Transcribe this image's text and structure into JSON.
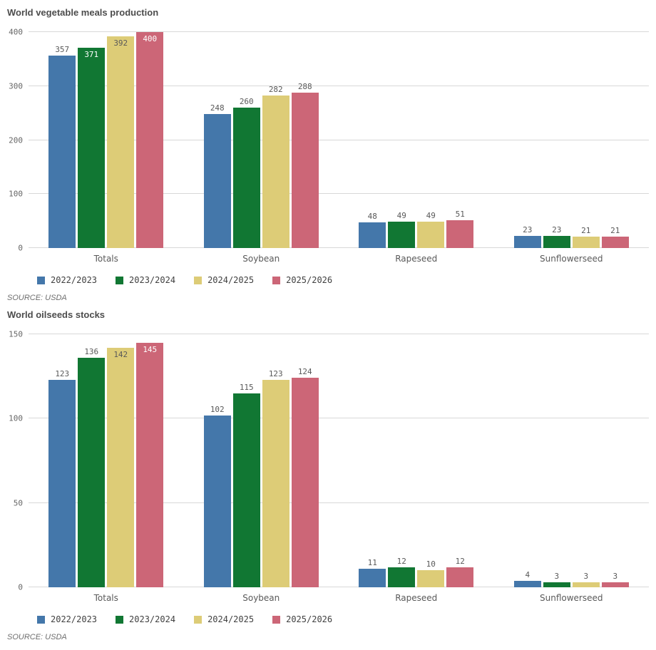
{
  "chart_data": [
    {
      "type": "bar",
      "title": "World vegetable meals production",
      "source": "SOURCE: USDA",
      "categories": [
        "Totals",
        "Soybean",
        "Rapeseed",
        "Sunflowerseed"
      ],
      "series": [
        {
          "name": "2022/2023",
          "color": "#4477AA",
          "values": [
            357,
            248,
            48,
            23
          ]
        },
        {
          "name": "2023/2024",
          "color": "#117733",
          "values": [
            371,
            260,
            49,
            23
          ]
        },
        {
          "name": "2024/2025",
          "color": "#DDCC77",
          "values": [
            392,
            282,
            49,
            21
          ]
        },
        {
          "name": "2025/2026",
          "color": "#CC6677",
          "values": [
            400,
            288,
            51,
            21
          ]
        }
      ],
      "yticks": [
        0,
        100,
        200,
        300,
        400
      ],
      "ylim": [
        0,
        408
      ],
      "grid": true,
      "legend_position": "bottom",
      "value_labels": true
    },
    {
      "type": "bar",
      "title": "World oilseeds stocks",
      "source": "SOURCE: USDA",
      "categories": [
        "Totals",
        "Soybean",
        "Rapeseed",
        "Sunflowerseed"
      ],
      "series": [
        {
          "name": "2022/2023",
          "color": "#4477AA",
          "values": [
            123,
            102,
            11,
            4
          ]
        },
        {
          "name": "2023/2024",
          "color": "#117733",
          "values": [
            136,
            115,
            12,
            3
          ]
        },
        {
          "name": "2024/2025",
          "color": "#DDCC77",
          "values": [
            142,
            123,
            10,
            3
          ]
        },
        {
          "name": "2025/2026",
          "color": "#CC6677",
          "values": [
            145,
            124,
            12,
            3
          ]
        }
      ],
      "yticks": [
        0,
        50,
        100,
        150
      ],
      "ylim": [
        0,
        152.5
      ],
      "grid": true,
      "legend_position": "bottom",
      "value_labels": true
    }
  ]
}
